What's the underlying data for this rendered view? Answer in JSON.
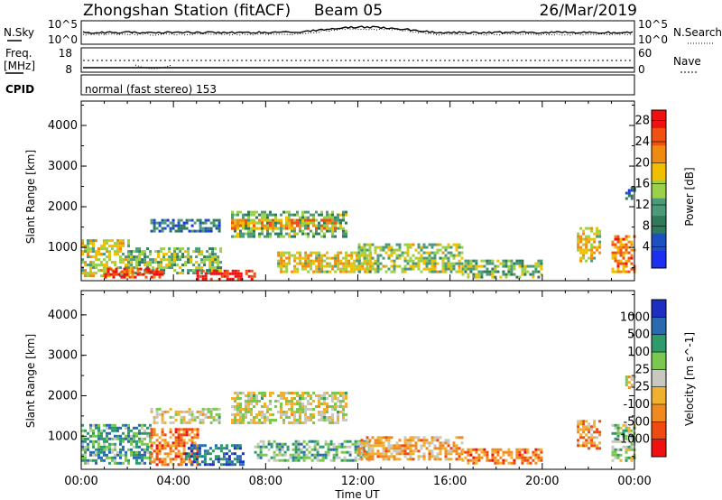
{
  "header": {
    "station_title": "Zhongshan Station (fitACF)",
    "beam": "Beam 05",
    "date": "26/Mar/2019"
  },
  "status_panel": {
    "left_label_top": "N.Sky",
    "left_ticks_top": [
      "10^5",
      "10^0"
    ],
    "right_label_top": "N.Search",
    "right_ticks_top": [
      "10^5",
      "10^0"
    ],
    "left_label_freq_1": "Freq.",
    "left_label_freq_2": "[MHz]",
    "left_ticks_freq": [
      "18",
      "8"
    ],
    "right_label_nave": "Nave",
    "right_ticks_nave": [
      "60",
      "0"
    ],
    "cpid_label": "CPID",
    "cpid_text": "normal (fast stereo) 153"
  },
  "colors": {
    "frame": "#000000",
    "power_scale": [
      "#1d2ff0",
      "#1e4fbf",
      "#2f7a5a",
      "#4c9a7a",
      "#9bd04a",
      "#f0c000",
      "#f08a10",
      "#f05010",
      "#f01010"
    ],
    "velocity_scale": [
      "#f01010",
      "#f04a10",
      "#f08a20",
      "#f0b030",
      "#c8c8c0",
      "#7ac850",
      "#2f9a6a",
      "#2a6ab0",
      "#1d2fc0"
    ]
  },
  "chart_data": [
    {
      "type": "heatmap",
      "name": "power",
      "x": {
        "label": "Time UT",
        "ticks": [
          "00:00",
          "04:00",
          "08:00",
          "12:00",
          "16:00",
          "20:00",
          "00:00"
        ],
        "range_hours": [
          0,
          24
        ]
      },
      "y": {
        "label": "Slant Range [km]",
        "ticks": [
          1000,
          2000,
          3000,
          4000
        ],
        "range": [
          180,
          4600
        ]
      },
      "colorbar": {
        "label": "Power [dB]",
        "ticks": [
          4,
          8,
          12,
          16,
          20,
          24,
          28
        ],
        "range": [
          0,
          30
        ]
      },
      "regions": [
        {
          "t0": 0.0,
          "t1": 2.0,
          "r0": 300,
          "r1": 1200,
          "level": 0.55
        },
        {
          "t0": 2.0,
          "t1": 6.0,
          "r0": 400,
          "r1": 1000,
          "level": 0.45
        },
        {
          "t0": 1.0,
          "t1": 3.5,
          "r0": 300,
          "r1": 500,
          "level": 0.9
        },
        {
          "t0": 5.0,
          "t1": 7.5,
          "r0": 250,
          "r1": 450,
          "level": 0.98
        },
        {
          "t0": 6.5,
          "t1": 11.5,
          "r0": 1300,
          "r1": 1900,
          "level": 0.4
        },
        {
          "t0": 6.5,
          "t1": 11.0,
          "r0": 1500,
          "r1": 1700,
          "level": 0.7
        },
        {
          "t0": 3.0,
          "t1": 6.0,
          "r0": 1400,
          "r1": 1700,
          "level": 0.25
        },
        {
          "t0": 8.5,
          "t1": 12.5,
          "r0": 400,
          "r1": 900,
          "level": 0.6
        },
        {
          "t0": 12.0,
          "t1": 16.5,
          "r0": 400,
          "r1": 1100,
          "level": 0.5
        },
        {
          "t0": 16.5,
          "t1": 20.0,
          "r0": 300,
          "r1": 700,
          "level": 0.45
        },
        {
          "t0": 21.5,
          "t1": 22.5,
          "r0": 700,
          "r1": 1500,
          "level": 0.6
        },
        {
          "t0": 23.0,
          "t1": 24.0,
          "r0": 400,
          "r1": 1300,
          "level": 0.75
        },
        {
          "t0": 23.6,
          "t1": 24.0,
          "r0": 2200,
          "r1": 2500,
          "level": 0.2
        }
      ]
    },
    {
      "type": "heatmap",
      "name": "velocity",
      "x": {
        "label": "Time UT",
        "ticks": [
          "00:00",
          "04:00",
          "08:00",
          "12:00",
          "16:00",
          "20:00",
          "00:00"
        ],
        "range_hours": [
          0,
          24
        ]
      },
      "y": {
        "label": "Slant Range [km]",
        "ticks": [
          1000,
          2000,
          3000,
          4000
        ],
        "range": [
          180,
          4600
        ]
      },
      "colorbar": {
        "label": "Velocity [m s^-1]",
        "ticks": [
          1000,
          500,
          100,
          25,
          -25,
          -100,
          -500,
          -1000
        ]
      },
      "regions": [
        {
          "t0": 0.0,
          "t1": 3.0,
          "r0": 300,
          "r1": 1300,
          "level": 0.7
        },
        {
          "t0": 3.0,
          "t1": 5.0,
          "r0": 300,
          "r1": 1200,
          "level": 0.25
        },
        {
          "t0": 4.5,
          "t1": 7.0,
          "r0": 300,
          "r1": 800,
          "level": 0.85
        },
        {
          "t0": 6.5,
          "t1": 11.5,
          "r0": 1300,
          "r1": 2100,
          "level": 0.5
        },
        {
          "t0": 3.0,
          "t1": 6.0,
          "r0": 1300,
          "r1": 1700,
          "level": 0.5
        },
        {
          "t0": 7.5,
          "t1": 12.5,
          "r0": 400,
          "r1": 900,
          "level": 0.65
        },
        {
          "t0": 12.0,
          "t1": 16.5,
          "r0": 400,
          "r1": 1000,
          "level": 0.35
        },
        {
          "t0": 16.5,
          "t1": 20.0,
          "r0": 300,
          "r1": 700,
          "level": 0.25
        },
        {
          "t0": 21.5,
          "t1": 22.5,
          "r0": 700,
          "r1": 1400,
          "level": 0.3
        },
        {
          "t0": 23.0,
          "t1": 24.0,
          "r0": 400,
          "r1": 1300,
          "level": 0.6
        },
        {
          "t0": 23.6,
          "t1": 24.0,
          "r0": 2200,
          "r1": 2500,
          "level": 0.5
        }
      ]
    }
  ]
}
